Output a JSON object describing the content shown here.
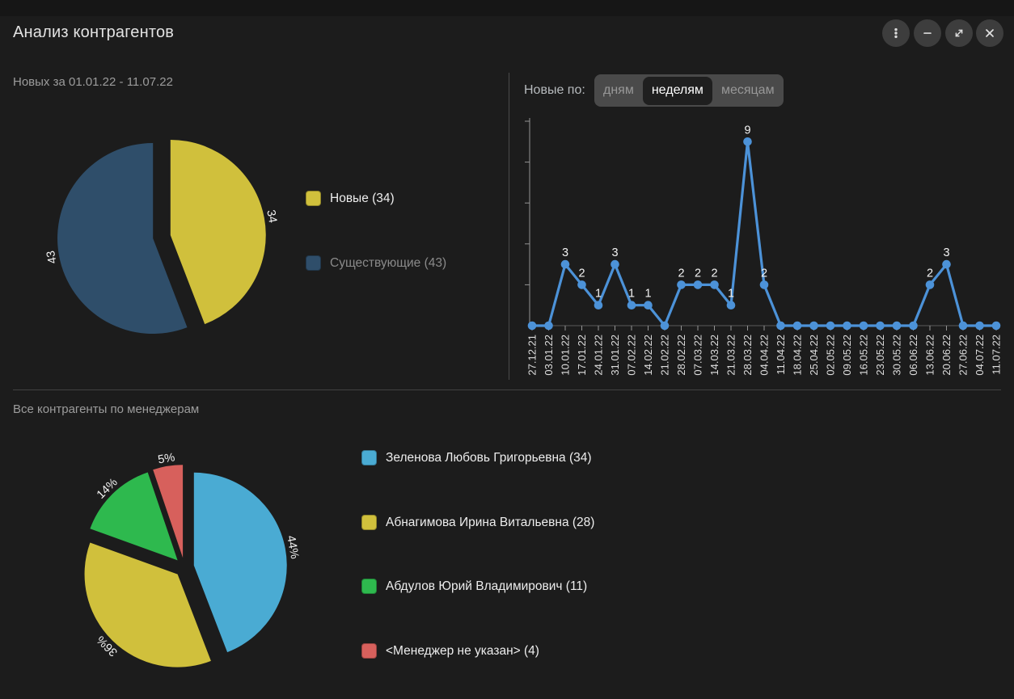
{
  "window": {
    "title": "Анализ контрагентов",
    "icons": {
      "menu": "kebab-vertical-icon",
      "minimize": "minus-icon",
      "resize": "expand-arrows-icon",
      "close": "x-icon"
    }
  },
  "panels": {
    "left_top": {
      "title": "Новых за 01.01.22 - 11.07.22"
    },
    "right_top": {
      "label": "Новые по:",
      "tabs": [
        {
          "label": "дням",
          "selected": false
        },
        {
          "label": "неделям",
          "selected": true
        },
        {
          "label": "месяцам",
          "selected": false
        }
      ]
    },
    "bottom": {
      "title": "Все контрагенты по менеджерам"
    }
  },
  "colors": {
    "background": "#1c1c1c",
    "line_series": "#4c92d8",
    "axis": "#949494"
  },
  "chart_data": [
    {
      "id": "new-vs-existing",
      "type": "pie",
      "title": "Новых за 01.01.22 - 11.07.22",
      "legend_position": "right",
      "slices": [
        {
          "label": "Новые",
          "value": 34,
          "color": "#d0c03c",
          "pie_label": "34",
          "legend_label": "Новые (34)",
          "legend_active": true
        },
        {
          "label": "Существующие",
          "value": 43,
          "color": "#2f4e6a",
          "pie_label": "43",
          "legend_label": "Существующие (43)",
          "legend_active": false
        }
      ]
    },
    {
      "id": "new-by-week",
      "type": "line",
      "x": [
        "27.12.21",
        "03.01.22",
        "10.01.22",
        "17.01.22",
        "24.01.22",
        "31.01.22",
        "07.02.22",
        "14.02.22",
        "21.02.22",
        "28.02.22",
        "07.03.22",
        "14.03.22",
        "21.03.22",
        "28.03.22",
        "04.04.22",
        "11.04.22",
        "18.04.22",
        "25.04.22",
        "02.05.22",
        "09.05.22",
        "16.05.22",
        "23.05.22",
        "30.05.22",
        "06.06.22",
        "13.06.22",
        "20.06.22",
        "27.06.22",
        "04.07.22",
        "11.07.22"
      ],
      "values": [
        0,
        0,
        3,
        2,
        1,
        3,
        1,
        1,
        0,
        2,
        2,
        2,
        1,
        9,
        2,
        0,
        0,
        0,
        0,
        0,
        0,
        0,
        0,
        0,
        2,
        3,
        0,
        0,
        0
      ],
      "color": "#4c92d8",
      "ylim": [
        0,
        10
      ],
      "yticks": [
        2,
        4,
        6,
        8,
        10
      ],
      "grid": false,
      "point_labels_hide_zero": true
    },
    {
      "id": "by-manager",
      "type": "pie",
      "title": "Все контрагенты по менеджерам",
      "legend_position": "right",
      "slices": [
        {
          "label": "Зеленова Любовь Григорьевна",
          "value": 34,
          "color": "#4aabd3",
          "pie_label": "44%",
          "legend_label": "Зеленова Любовь Григорьевна (34)",
          "legend_active": true
        },
        {
          "label": "Абнагимова Ирина Витальевна",
          "value": 28,
          "color": "#d0c03c",
          "pie_label": "36%",
          "legend_label": "Абнагимова Ирина Витальевна (28)",
          "legend_active": true
        },
        {
          "label": "Абдулов Юрий Владимирович",
          "value": 11,
          "color": "#2eb94e",
          "pie_label": "14%",
          "legend_label": "Абдулов Юрий Владимирович (11)",
          "legend_active": true
        },
        {
          "label": "<Менеджер не указан>",
          "value": 4,
          "color": "#d7605c",
          "pie_label": "5%",
          "legend_label": "<Менеджер не указан> (4)",
          "legend_active": true
        }
      ]
    }
  ]
}
